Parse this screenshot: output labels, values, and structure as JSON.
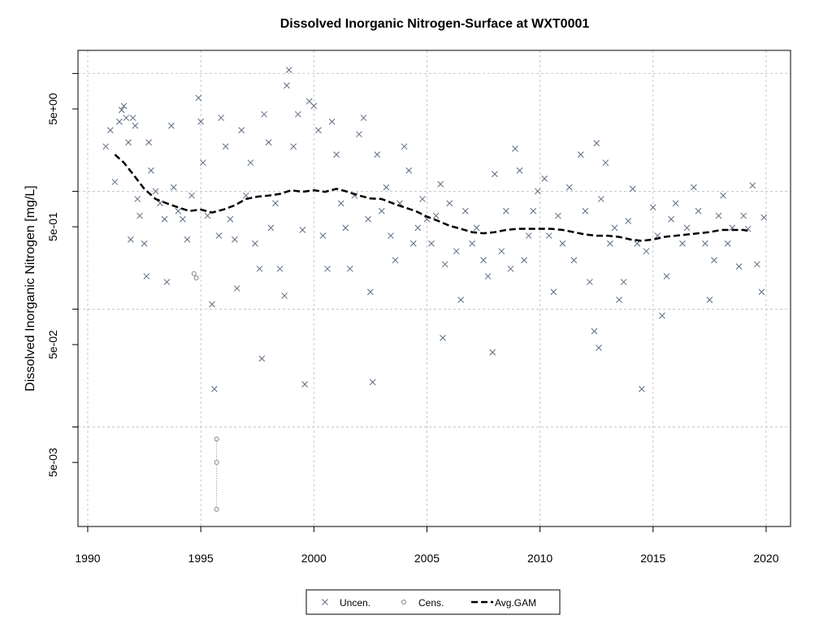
{
  "chart_data": {
    "type": "scatter",
    "title": "Dissolved Inorganic Nitrogen-Surface at WXT0001",
    "y_label": "Dissolved Inorganic Nitrogen [mg/L]",
    "log_y": true,
    "grid": true,
    "legend": "bottom",
    "xlim": [
      1989.57,
      2021.08
    ],
    "ylim": [
      0.00143,
      15.7
    ],
    "xticks": [
      1990,
      1995,
      2000,
      2005,
      2010,
      2015,
      2020
    ],
    "yticks": [
      {
        "value": 5,
        "label": "5e+00"
      },
      {
        "value": 0.5,
        "label": "5e-01"
      },
      {
        "value": 0.05,
        "label": "5e-02"
      },
      {
        "value": 0.005,
        "label": "5e-03"
      }
    ],
    "yminor": [
      10,
      1,
      0.1,
      0.01
    ],
    "series": [
      {
        "name": "Uncen.",
        "marker": "x",
        "color": "#5b6a82",
        "x": [
          1990.8,
          1991.0,
          1991.2,
          1991.4,
          1991.5,
          1991.6,
          1991.7,
          1991.8,
          1991.9,
          1992.0,
          1992.1,
          1992.2,
          1992.3,
          1992.5,
          1992.6,
          1992.7,
          1992.8,
          1993.0,
          1993.2,
          1993.4,
          1993.5,
          1993.7,
          1993.8,
          1994.0,
          1994.2,
          1994.4,
          1994.6,
          1994.9,
          1995.0,
          1995.1,
          1995.3,
          1995.5,
          1995.6,
          1995.8,
          1995.9,
          1996.1,
          1996.3,
          1996.5,
          1996.6,
          1996.8,
          1997.0,
          1997.2,
          1997.4,
          1997.6,
          1997.7,
          1997.8,
          1998.0,
          1998.1,
          1998.3,
          1998.5,
          1998.7,
          1998.8,
          1998.9,
          1999.1,
          1999.3,
          1999.5,
          1999.6,
          1999.8,
          2000.0,
          2000.2,
          2000.4,
          2000.6,
          2000.8,
          2001.0,
          2001.2,
          2001.4,
          2001.6,
          2001.8,
          2002.0,
          2002.2,
          2002.4,
          2002.5,
          2002.6,
          2002.8,
          2003.0,
          2003.2,
          2003.4,
          2003.6,
          2003.8,
          2004.0,
          2004.2,
          2004.4,
          2004.6,
          2004.8,
          2005.0,
          2005.2,
          2005.4,
          2005.6,
          2005.7,
          2005.8,
          2006.0,
          2006.3,
          2006.5,
          2006.7,
          2007.0,
          2007.2,
          2007.5,
          2007.7,
          2007.9,
          2008.0,
          2008.3,
          2008.5,
          2008.7,
          2008.9,
          2009.1,
          2009.3,
          2009.5,
          2009.7,
          2009.9,
          2010.2,
          2010.4,
          2010.6,
          2010.8,
          2011.0,
          2011.3,
          2011.5,
          2011.8,
          2012.0,
          2012.2,
          2012.4,
          2012.5,
          2012.6,
          2012.7,
          2012.9,
          2013.1,
          2013.3,
          2013.5,
          2013.7,
          2013.9,
          2014.1,
          2014.3,
          2014.5,
          2014.7,
          2015.0,
          2015.2,
          2015.4,
          2015.6,
          2015.8,
          2016.0,
          2016.3,
          2016.5,
          2016.8,
          2017.0,
          2017.3,
          2017.5,
          2017.7,
          2017.9,
          2018.1,
          2018.3,
          2018.5,
          2018.8,
          2019.0,
          2019.2,
          2019.4,
          2019.6,
          2019.8,
          2019.9
        ],
        "values": [
          2.4,
          3.3,
          1.2,
          3.9,
          4.9,
          5.3,
          4.2,
          2.6,
          0.39,
          4.2,
          3.6,
          0.86,
          0.62,
          0.36,
          0.19,
          2.6,
          1.5,
          1.0,
          0.79,
          0.58,
          0.17,
          3.6,
          1.08,
          0.68,
          0.58,
          0.39,
          0.92,
          6.2,
          3.9,
          1.75,
          0.62,
          0.11,
          0.021,
          0.42,
          4.2,
          2.4,
          0.58,
          0.39,
          0.15,
          3.3,
          0.92,
          1.75,
          0.36,
          0.22,
          0.038,
          4.5,
          2.6,
          0.49,
          0.79,
          0.22,
          0.13,
          7.9,
          10.7,
          2.4,
          4.5,
          0.47,
          0.023,
          5.8,
          5.3,
          3.3,
          0.42,
          0.22,
          3.9,
          2.05,
          0.79,
          0.49,
          0.22,
          0.92,
          3.05,
          4.2,
          0.58,
          0.14,
          0.024,
          2.05,
          0.68,
          1.08,
          0.42,
          0.26,
          0.79,
          2.4,
          1.5,
          0.36,
          0.49,
          0.86,
          0.58,
          0.36,
          0.62,
          1.15,
          0.057,
          0.24,
          0.79,
          0.31,
          0.12,
          0.68,
          0.36,
          0.49,
          0.26,
          0.19,
          0.043,
          1.4,
          0.31,
          0.68,
          0.22,
          2.3,
          1.5,
          0.26,
          0.42,
          0.68,
          1.0,
          1.28,
          0.42,
          0.14,
          0.62,
          0.36,
          1.08,
          0.26,
          2.05,
          0.68,
          0.17,
          0.065,
          2.56,
          0.047,
          0.86,
          1.75,
          0.36,
          0.49,
          0.12,
          0.17,
          0.56,
          1.05,
          0.36,
          0.021,
          0.31,
          0.73,
          0.42,
          0.088,
          0.19,
          0.58,
          0.79,
          0.36,
          0.49,
          1.08,
          0.68,
          0.36,
          0.12,
          0.26,
          0.62,
          0.92,
          0.36,
          0.49,
          0.23,
          0.62,
          0.48,
          1.12,
          0.24,
          0.14,
          0.6
        ]
      },
      {
        "name": "Cens.",
        "marker": "o",
        "color": "#808080",
        "x": [
          1994.7,
          1994.8,
          1995.7,
          1995.7,
          1995.7
        ],
        "values": [
          0.2,
          0.184,
          0.0079,
          0.005,
          0.002
        ]
      },
      {
        "name": "Avg.GAM",
        "marker": "line",
        "color": "#000000",
        "x": [
          1991.2,
          1991.6,
          1992.0,
          1992.5,
          1993.0,
          1993.5,
          1994.0,
          1994.5,
          1995.0,
          1995.5,
          1996.0,
          1996.5,
          1997.0,
          1997.5,
          1998.0,
          1998.5,
          1999.0,
          1999.5,
          2000.0,
          2000.5,
          2001.0,
          2001.5,
          2002.0,
          2002.5,
          2003.0,
          2003.5,
          2004.0,
          2004.5,
          2005.0,
          2005.5,
          2006.0,
          2006.5,
          2007.0,
          2007.5,
          2008.0,
          2008.5,
          2009.0,
          2009.5,
          2010.0,
          2010.5,
          2011.0,
          2011.5,
          2012.0,
          2012.5,
          2013.0,
          2013.5,
          2014.0,
          2014.5,
          2015.0,
          2015.5,
          2016.0,
          2016.5,
          2017.0,
          2017.5,
          2018.0,
          2018.5,
          2019.0,
          2019.3
        ],
        "values": [
          2.05,
          1.75,
          1.4,
          1.05,
          0.86,
          0.79,
          0.73,
          0.68,
          0.7,
          0.66,
          0.7,
          0.76,
          0.86,
          0.9,
          0.92,
          0.95,
          1.02,
          0.99,
          1.02,
          0.99,
          1.05,
          0.99,
          0.92,
          0.87,
          0.86,
          0.79,
          0.73,
          0.68,
          0.61,
          0.56,
          0.51,
          0.48,
          0.45,
          0.44,
          0.45,
          0.47,
          0.48,
          0.48,
          0.48,
          0.48,
          0.47,
          0.45,
          0.43,
          0.42,
          0.42,
          0.41,
          0.39,
          0.38,
          0.39,
          0.41,
          0.42,
          0.43,
          0.44,
          0.45,
          0.47,
          0.47,
          0.47,
          0.46
        ]
      }
    ]
  }
}
